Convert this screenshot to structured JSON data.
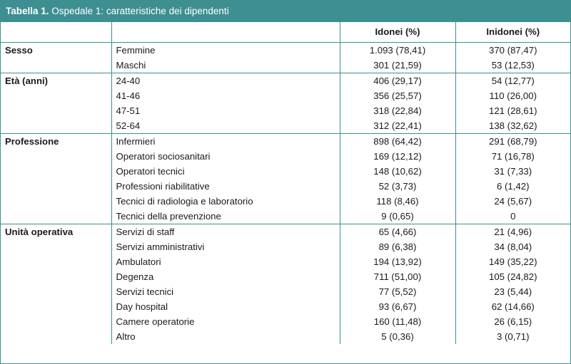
{
  "title": {
    "bold": "Tabella 1.",
    "rest": " Ospedale 1: caratteristiche dei dipendenti"
  },
  "headers": [
    "",
    "",
    "Idonei (%)",
    "Inidonei (%)"
  ],
  "groups": [
    {
      "name": "Sesso",
      "rows": [
        [
          "Femmine",
          "1.093 (78,41)",
          "370 (87,47)"
        ],
        [
          "Maschi",
          "301 (21,59)",
          "53 (12,53)"
        ]
      ]
    },
    {
      "name": "Età (anni)",
      "rows": [
        [
          "24-40",
          "406 (29,17)",
          "54 (12,77)"
        ],
        [
          "41-46",
          "356 (25,57)",
          "110 (26,00)"
        ],
        [
          "47-51",
          "318 (22,84)",
          "121 (28,61)"
        ],
        [
          "52-64",
          "312 (22,41)",
          "138 (32,62)"
        ]
      ]
    },
    {
      "name": "Professione",
      "rows": [
        [
          "Infermieri",
          "898 (64,42)",
          "291 (68,79)"
        ],
        [
          "Operatori sociosanitari",
          "169 (12,12)",
          "71 (16,78)"
        ],
        [
          "Operatori tecnici",
          "148 (10,62)",
          "31 (7,33)"
        ],
        [
          "Professioni riabilitative",
          "52 (3,73)",
          "6 (1,42)"
        ],
        [
          "Tecnici di radiologia e laboratorio",
          "118 (8,46)",
          "24 (5,67)"
        ],
        [
          "Tecnici della prevenzione",
          "9 (0,65)",
          "0"
        ]
      ]
    },
    {
      "name": "Unità operativa",
      "rows": [
        [
          "Servizi di staff",
          "65 (4,66)",
          "21 (4,96)"
        ],
        [
          "Servizi amministrativi",
          "89 (6,38)",
          "34 (8,04)"
        ],
        [
          "Ambulatori",
          "194 (13,92)",
          "149 (35,22)"
        ],
        [
          "Degenza",
          "711 (51,00)",
          "105 (24,82)"
        ],
        [
          "Servizi tecnici",
          "77 (5,52)",
          "23 (5,44)"
        ],
        [
          "Day hospital",
          "93 (6,67)",
          "62 (14,66)"
        ],
        [
          "Camere operatorie",
          "160 (11,48)",
          "26 (6,15)"
        ],
        [
          "Altro",
          "5 (0,36)",
          "3 (0,71)"
        ]
      ]
    }
  ],
  "colors": {
    "accent": "#3d8f91",
    "title_text": "#ffffff"
  }
}
